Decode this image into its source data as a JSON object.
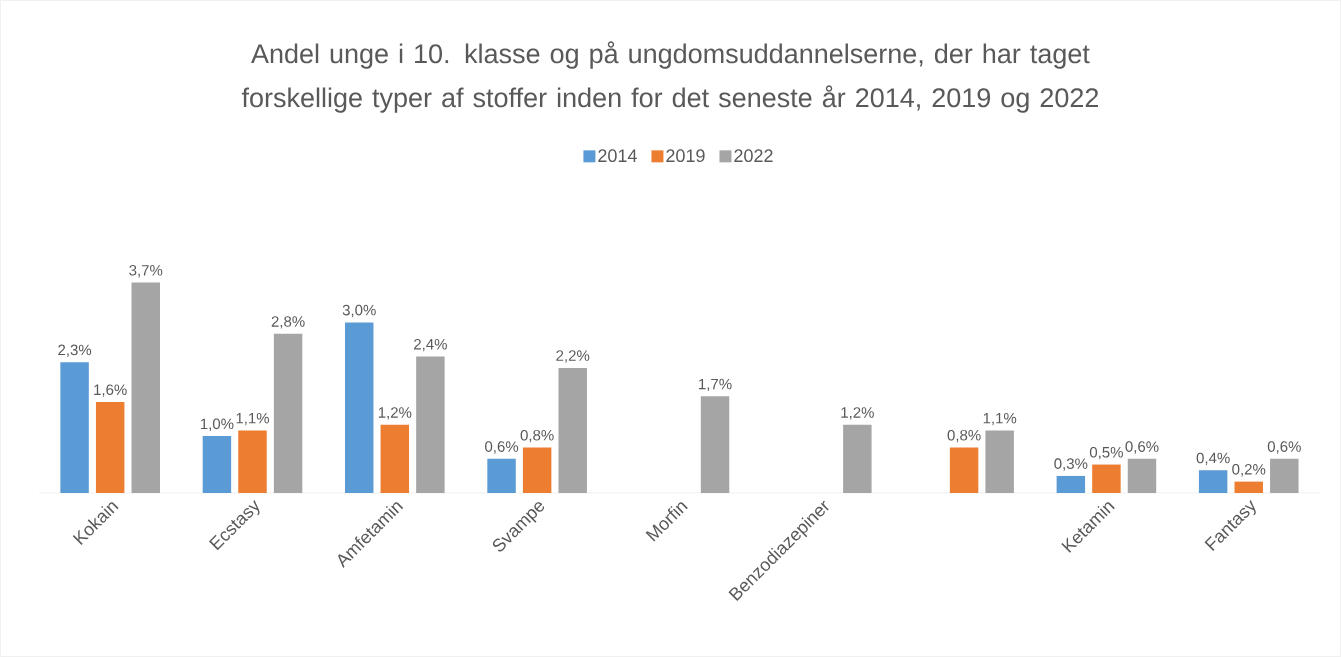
{
  "chart_data": {
    "type": "bar",
    "title": "Andel unge i 10. klasse og på ungdomsuddannelserne, der har taget forskellige typer af stoffer inden for det seneste år 2014, 2019 og 2022",
    "categories": [
      "Kokain",
      "Ecstasy",
      "Amfetamin",
      "Svampe",
      "Morfin",
      "Benzodiazepiner",
      null,
      "Ketamin",
      "Fantasy"
    ],
    "series": [
      {
        "name": "2014",
        "color": "#5b9bd5",
        "values": [
          2.3,
          1.0,
          3.0,
          0.6,
          null,
          null,
          null,
          0.3,
          0.4
        ],
        "value_labels": [
          "2,3%",
          "1,0%",
          "3,0%",
          "0,6%",
          null,
          null,
          null,
          "0,3%",
          "0,4%"
        ]
      },
      {
        "name": "2019",
        "color": "#ed7d31",
        "values": [
          1.6,
          1.1,
          1.2,
          0.8,
          null,
          null,
          0.8,
          0.5,
          0.2
        ],
        "value_labels": [
          "1,6%",
          "1,1%",
          "1,2%",
          "0,8%",
          null,
          null,
          "0,8%",
          "0,5%",
          "0,2%"
        ]
      },
      {
        "name": "2022",
        "color": "#a5a5a5",
        "values": [
          3.7,
          2.8,
          2.4,
          2.2,
          1.7,
          1.2,
          1.1,
          0.6,
          0.6
        ],
        "value_labels": [
          "3,7%",
          "2,8%",
          "2,4%",
          "2,2%",
          "1,7%",
          "1,2%",
          "1,1%",
          "0,6%",
          "0,6%"
        ]
      }
    ],
    "legend": "top"
  }
}
